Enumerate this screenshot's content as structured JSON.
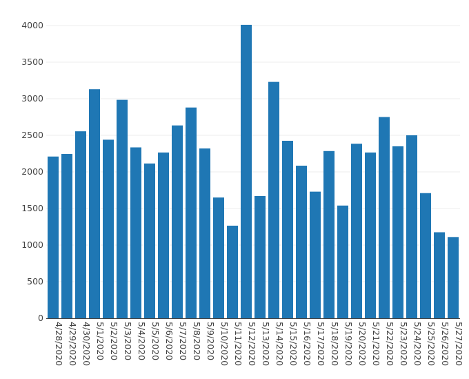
{
  "chart_data": {
    "type": "bar",
    "title": "",
    "xlabel": "",
    "ylabel": "",
    "categories": [
      "4/28/2020",
      "4/29/2020",
      "4/30/2020",
      "5/1/2020",
      "5/2/2020",
      "5/3/2020",
      "5/4/2020",
      "5/5/2020",
      "5/6/2020",
      "5/7/2020",
      "5/8/2020",
      "5/9/2020",
      "5/10/2020",
      "5/11/2020",
      "5/12/2020",
      "5/13/2020",
      "5/14/2020",
      "5/15/2020",
      "5/16/2020",
      "5/17/2020",
      "5/18/2020",
      "5/19/2020",
      "5/20/2020",
      "5/21/2020",
      "5/22/2020",
      "5/23/2020",
      "5/24/2020",
      "5/25/2020",
      "5/26/2020",
      "5/27/2020"
    ],
    "values": [
      2210,
      2245,
      2555,
      3130,
      2440,
      2985,
      2335,
      2115,
      2265,
      2635,
      2880,
      2320,
      1650,
      1265,
      4010,
      1670,
      3230,
      2425,
      2085,
      1730,
      2285,
      1540,
      2385,
      2265,
      2750,
      2350,
      2500,
      1710,
      1175,
      1110
    ],
    "ylim": [
      0,
      4000
    ],
    "yticks": [
      0,
      500,
      1000,
      1500,
      2000,
      2500,
      3000,
      3500,
      4000
    ],
    "bar_color": "#1f77b4",
    "grid": true,
    "legend": "none"
  }
}
